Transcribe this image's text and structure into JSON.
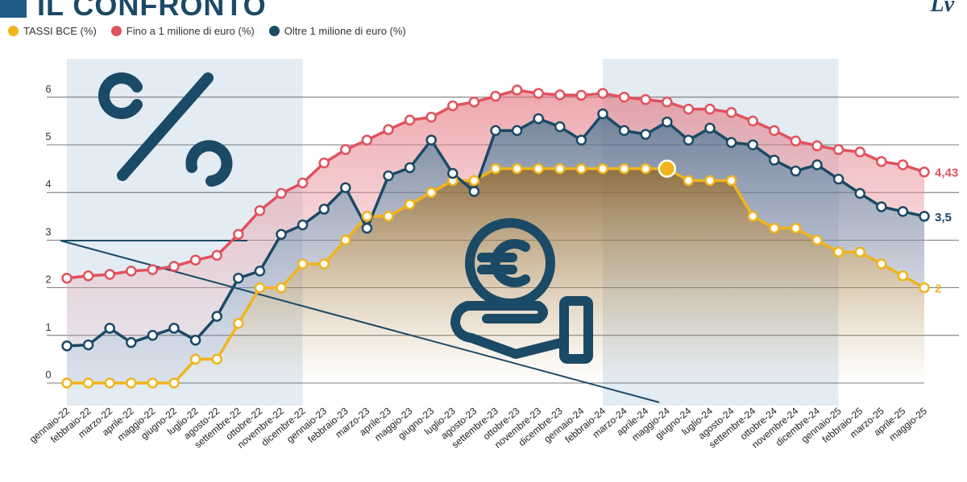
{
  "title": "IL CONFRONTO",
  "brand": "Lv",
  "legend": [
    {
      "label": "TASSI BCE (%)",
      "color": "#f0b41c"
    },
    {
      "label": "Fino a 1 milione di euro (%)",
      "color": "#e0525c"
    },
    {
      "label": "Oltre 1 milione di euro (%)",
      "color": "#1b4a66"
    }
  ],
  "colors": {
    "bce": "#f0b41c",
    "small": "#e0525c",
    "large": "#1b4a66",
    "band": "#e3ebf3",
    "axis": "#1b4a66",
    "grid": "#555555"
  },
  "icons": [
    "percent-icon",
    "euro-coin-hand-icon"
  ],
  "chart_data": {
    "type": "line",
    "title": "IL CONFRONTO",
    "xlabel": "",
    "ylabel": "",
    "ylim": [
      0,
      6
    ],
    "yticks": [
      0,
      1,
      2,
      3,
      4,
      5,
      6
    ],
    "grid": true,
    "legend_position": "top-left",
    "categories": [
      "gennaio-22",
      "febbraio-22",
      "marzo-22",
      "aprile-22",
      "maggio-22",
      "giugno-22",
      "luglio-22",
      "agosto-22",
      "settembre-22",
      "ottobre-22",
      "novembre-22",
      "dicembre-22",
      "gennaio-23",
      "febbraio-23",
      "marzo-23",
      "aprile-23",
      "maggio-23",
      "giugno-23",
      "luglio-23",
      "agosto-23",
      "settembre-23",
      "ottobre-23",
      "novembre-23",
      "dicembre-23",
      "gennaio-24",
      "febbraio-24",
      "marzo-24",
      "aprile-24",
      "maggio-24",
      "giugno-24",
      "luglio-24",
      "agosto-24",
      "settembre-24",
      "ottobre-24",
      "novembre-24",
      "dicembre-24",
      "gennaio-25",
      "febbraio-25",
      "marzo-25",
      "aprile-25",
      "maggio-25"
    ],
    "series": [
      {
        "name": "TASSI BCE (%)",
        "key": "bce",
        "values": [
          0,
          0,
          0,
          0,
          0,
          0,
          0.5,
          0.5,
          1.25,
          2,
          2,
          2.5,
          2.5,
          3,
          3.5,
          3.5,
          3.75,
          4,
          4.25,
          4.25,
          4.5,
          4.5,
          4.5,
          4.5,
          4.5,
          4.5,
          4.5,
          4.5,
          4.5,
          4.25,
          4.25,
          4.25,
          3.5,
          3.25,
          3.25,
          3,
          2.75,
          2.75,
          2.5,
          2.25,
          2
        ]
      },
      {
        "name": "Fino a 1 milione di euro (%)",
        "key": "small",
        "values": [
          2.2,
          2.25,
          2.28,
          2.35,
          2.38,
          2.45,
          2.58,
          2.68,
          3.12,
          3.62,
          3.98,
          4.2,
          4.62,
          4.9,
          5.1,
          5.32,
          5.52,
          5.58,
          5.82,
          5.9,
          6.02,
          6.15,
          6.08,
          6.05,
          6.04,
          6.08,
          6.0,
          5.95,
          5.9,
          5.75,
          5.75,
          5.68,
          5.5,
          5.3,
          5.08,
          4.98,
          4.9,
          4.85,
          4.65,
          4.58,
          4.43
        ]
      },
      {
        "name": "Oltre 1 milione di euro (%)",
        "key": "large",
        "values": [
          0.78,
          0.8,
          1.15,
          0.85,
          1.0,
          1.15,
          0.9,
          1.4,
          2.2,
          2.35,
          3.12,
          3.32,
          3.65,
          4.1,
          3.25,
          4.35,
          4.52,
          5.1,
          4.4,
          4.02,
          5.3,
          5.3,
          5.55,
          5.38,
          5.1,
          5.65,
          5.3,
          5.22,
          5.48,
          5.1,
          5.35,
          5.05,
          5.0,
          4.68,
          4.45,
          4.58,
          4.28,
          3.98,
          3.7,
          3.6,
          3.5
        ]
      }
    ],
    "end_labels": {
      "small": "4,43",
      "large": "3,5",
      "bce": "2"
    },
    "highlight": {
      "series": "bce",
      "category": "maggio-24"
    },
    "shaded_periods": [
      [
        "gennaio-22",
        "dicembre-22"
      ],
      [
        "febbraio-24",
        "gennaio-25"
      ]
    ]
  }
}
